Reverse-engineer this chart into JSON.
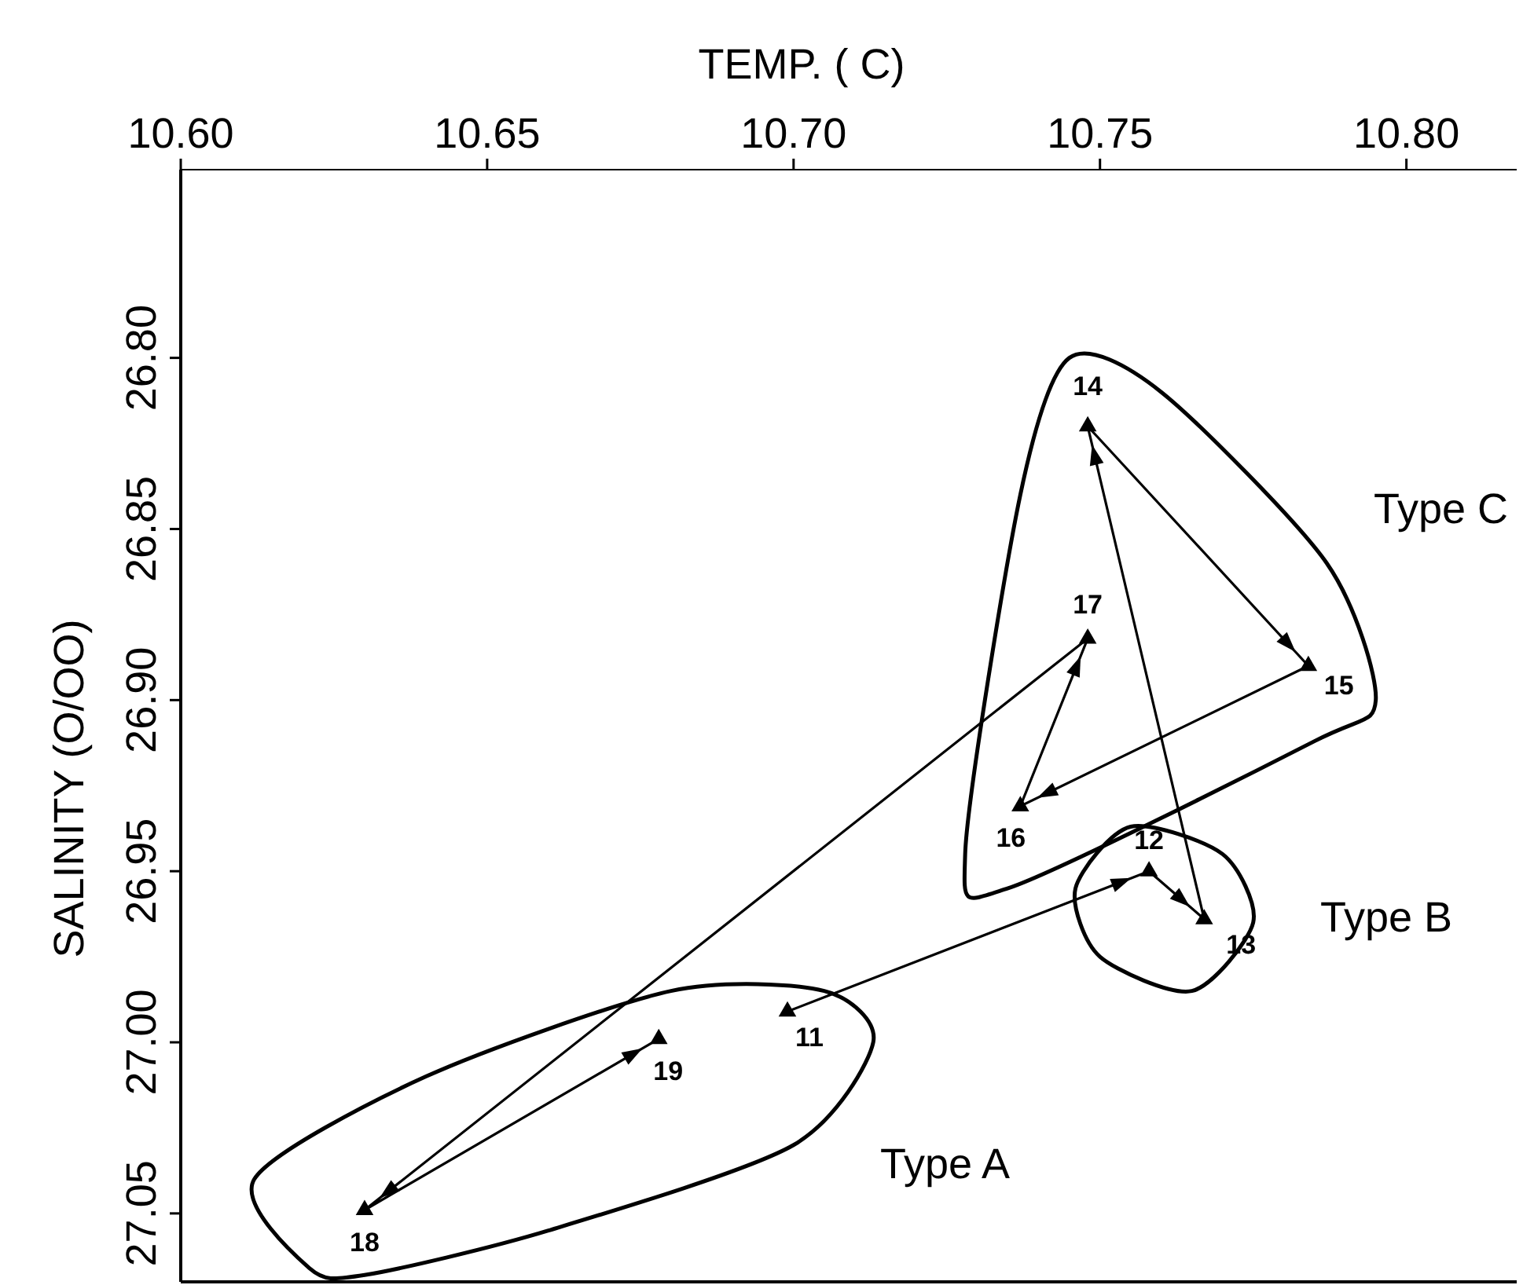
{
  "chart_data": {
    "type": "line",
    "xlabel": "TEMP. ( C)",
    "ylabel": "SALINITY  (O/OO)",
    "x": [
      10.699,
      10.758,
      10.767,
      10.748,
      10.784,
      10.737,
      10.748,
      10.63,
      10.678
    ],
    "series": [
      {
        "color": "#000000",
        "values": [
          26.991,
          26.95,
          26.964,
          26.82,
          26.89,
          26.931,
          26.882,
          27.049,
          26.999
        ]
      }
    ],
    "marker": "triangle",
    "line_style": "solid",
    "grid": false,
    "xlim": [
      10.6,
      10.818
    ],
    "xticks": [
      {
        "value": 10.6,
        "label": "10.60"
      },
      {
        "value": 10.65,
        "label": "10.65"
      },
      {
        "value": 10.7,
        "label": "10.70"
      },
      {
        "value": 10.75,
        "label": "10.75"
      },
      {
        "value": 10.8,
        "label": "10.80"
      }
    ],
    "ylim": [
      27.07,
      26.745
    ],
    "yticks": [
      {
        "value": 26.8,
        "label": "26.80"
      },
      {
        "value": 26.85,
        "label": "26.85"
      },
      {
        "value": 26.9,
        "label": "26.90"
      },
      {
        "value": 26.95,
        "label": "26.95"
      },
      {
        "value": 27.0,
        "label": "27.00"
      },
      {
        "value": 27.05,
        "label": "27.05"
      }
    ],
    "annotations": [
      {
        "text": "11",
        "x": 10.699,
        "y": 26.991
      },
      {
        "text": "12",
        "x": 10.758,
        "y": 26.95
      },
      {
        "text": "13",
        "x": 10.767,
        "y": 26.964
      },
      {
        "text": "14",
        "x": 10.748,
        "y": 26.82
      },
      {
        "text": "15",
        "x": 10.784,
        "y": 26.89
      },
      {
        "text": "16",
        "x": 10.737,
        "y": 26.931
      },
      {
        "text": "17",
        "x": 10.748,
        "y": 26.882
      },
      {
        "text": "18",
        "x": 10.63,
        "y": 27.049
      },
      {
        "text": "19",
        "x": 10.678,
        "y": 26.999
      },
      "Type A",
      "Type B",
      "Type C"
    ]
  }
}
